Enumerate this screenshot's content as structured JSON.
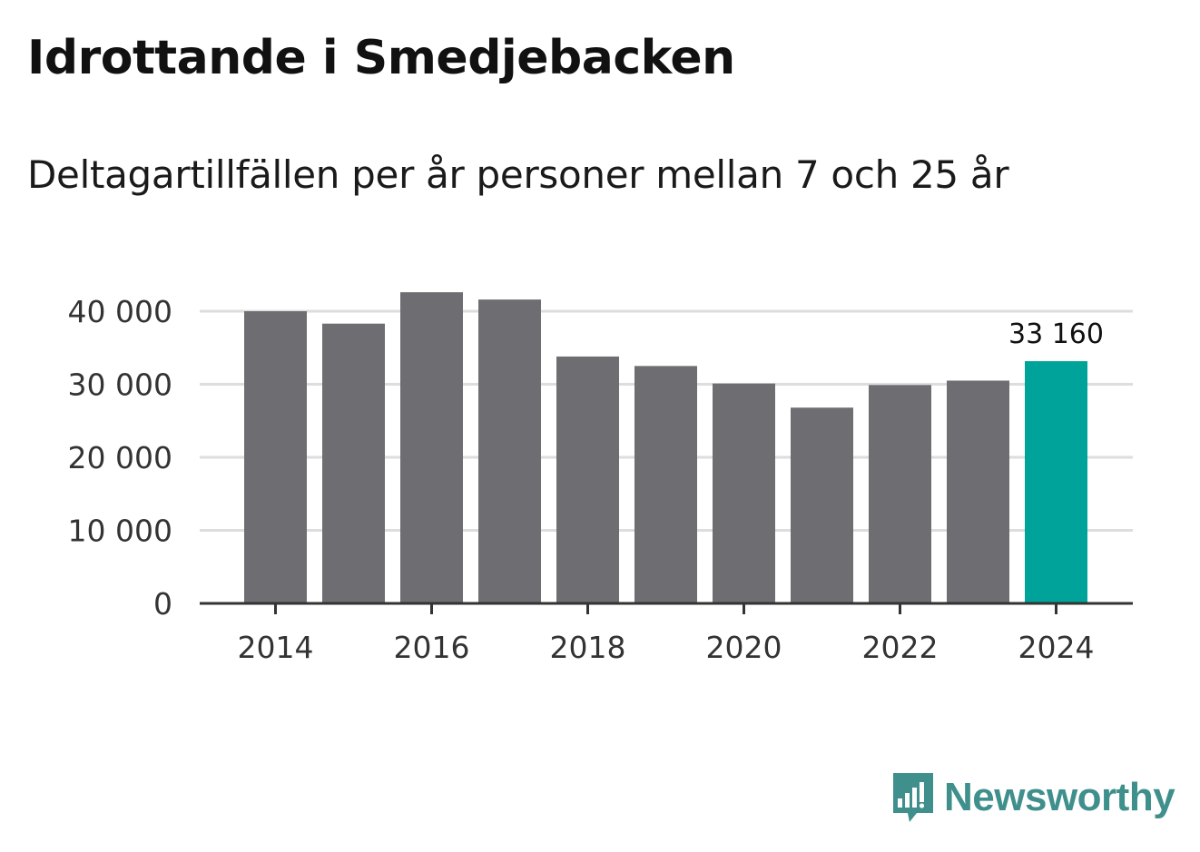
{
  "header": {
    "title": "Idrottande i Smedjebacken",
    "subtitle": "Deltagartillfällen per år personer mellan 7 och 25 år"
  },
  "brand": {
    "name": "Newsworthy"
  },
  "colors": {
    "bar": "#6e6d72",
    "highlight": "#00a39a",
    "grid": "#dddddd",
    "axis": "#333333",
    "logo": "#3f8f8c"
  },
  "chart_data": {
    "type": "bar",
    "title": "Idrottande i Smedjebacken",
    "subtitle": "Deltagartillfällen per år personer mellan 7 och 25 år",
    "xlabel": "",
    "ylabel": "",
    "categories": [
      "2014",
      "2015",
      "2016",
      "2017",
      "2018",
      "2019",
      "2020",
      "2021",
      "2022",
      "2023",
      "2024"
    ],
    "values": [
      40000,
      38300,
      42600,
      41600,
      33800,
      32500,
      30100,
      26800,
      29900,
      30500,
      33160
    ],
    "highlight_index": 10,
    "ylim": [
      0,
      40000
    ],
    "yticks": [
      0,
      10000,
      20000,
      30000,
      40000
    ],
    "ytick_labels": [
      "0",
      "10 000",
      "20 000",
      "30 000",
      "40 000"
    ],
    "xtick_labels": [
      "2014",
      "2016",
      "2018",
      "2020",
      "2022",
      "2024"
    ],
    "annotations": [
      {
        "category": "2024",
        "text": "33 160"
      }
    ],
    "grid": true,
    "legend": "none"
  }
}
